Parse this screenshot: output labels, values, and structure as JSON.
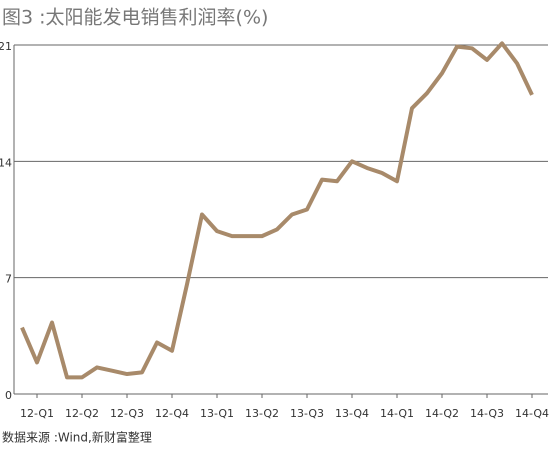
{
  "chart_data": {
    "type": "line",
    "title": "图3 :太阳能发电销售利润率(%)",
    "source": "数据来源 :Wind,新财富整理",
    "categories": [
      null,
      "12-Q1",
      null,
      null,
      "12-Q2",
      null,
      null,
      "12-Q3",
      null,
      null,
      "12-Q4",
      null,
      null,
      "13-Q1",
      null,
      null,
      "13-Q2",
      null,
      null,
      "13-Q3",
      null,
      null,
      "13-Q4",
      null,
      null,
      "14-Q1",
      null,
      null,
      "14-Q2",
      null,
      null,
      "14-Q3",
      null,
      null,
      "14-Q4"
    ],
    "series": [
      {
        "name": "销售利润率",
        "color": "#a88a6a",
        "values": [
          4.0,
          1.9,
          4.3,
          1.0,
          1.0,
          1.6,
          1.4,
          1.2,
          1.3,
          3.1,
          2.6,
          6.6,
          10.8,
          9.8,
          9.5,
          9.5,
          9.5,
          9.9,
          10.8,
          11.1,
          12.9,
          12.8,
          14.0,
          13.6,
          13.3,
          12.8,
          17.2,
          18.1,
          19.3,
          20.9,
          20.8,
          20.1,
          21.1,
          19.9,
          18.0
        ]
      }
    ],
    "ylim": [
      0,
      21
    ],
    "yticks": [
      0,
      7,
      14,
      21
    ],
    "grid": true
  }
}
